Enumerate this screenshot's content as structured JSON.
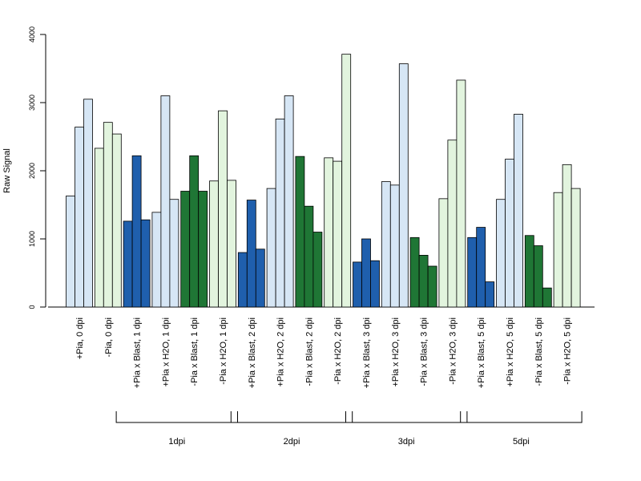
{
  "colors": {
    "plus_light": "#d6e6f5",
    "plus_dark": "#1f5fad",
    "minus_light": "#e2f4de",
    "minus_dark": "#1f7635",
    "stroke": "#000000"
  },
  "chart_data": {
    "type": "bar",
    "ylabel": "Raw Signal",
    "ylim": [
      0,
      4000
    ],
    "yticks": [
      "0",
      "1000",
      "2000",
      "3000",
      "4000"
    ],
    "grid": false,
    "legend": "none",
    "categories": [
      {
        "label": "+Pia, 0 dpi",
        "values": [
          1630,
          2640,
          3050
        ],
        "color": "plus_light"
      },
      {
        "label": "-Pia, 0 dpi",
        "values": [
          2330,
          2710,
          2540
        ],
        "color": "minus_light"
      },
      {
        "label": "+Pia x Blast, 1 dpi",
        "values": [
          1260,
          2220,
          1280
        ],
        "color": "plus_dark"
      },
      {
        "label": "+Pia x H2O, 1 dpi",
        "values": [
          1390,
          3100,
          1580
        ],
        "color": "plus_light"
      },
      {
        "label": "-Pia x Blast, 1 dpi",
        "values": [
          1700,
          2220,
          1700
        ],
        "color": "minus_dark"
      },
      {
        "label": "-Pia x H2O, 1 dpi",
        "values": [
          1850,
          2880,
          1860
        ],
        "color": "minus_light"
      },
      {
        "label": "+Pia x Blast, 2 dpi",
        "values": [
          800,
          1570,
          850
        ],
        "color": "plus_dark"
      },
      {
        "label": "+Pia x H2O, 2 dpi",
        "values": [
          1740,
          2760,
          3100
        ],
        "color": "plus_light"
      },
      {
        "label": "-Pia x Blast, 2 dpi",
        "values": [
          2210,
          1480,
          1100
        ],
        "color": "minus_dark"
      },
      {
        "label": "-Pia x H2O, 2 dpi",
        "values": [
          2190,
          2140,
          3710
        ],
        "color": "minus_light"
      },
      {
        "label": "+Pia x Blast, 3 dpi",
        "values": [
          660,
          1000,
          680
        ],
        "color": "plus_dark"
      },
      {
        "label": "+Pia x H2O, 3 dpi",
        "values": [
          1840,
          1790,
          3570
        ],
        "color": "plus_light"
      },
      {
        "label": "-Pia x Blast, 3 dpi",
        "values": [
          1020,
          760,
          600
        ],
        "color": "minus_dark"
      },
      {
        "label": "-Pia x H2O, 3 dpi",
        "values": [
          1590,
          2450,
          3330
        ],
        "color": "minus_light"
      },
      {
        "label": "+Pia x Blast, 5 dpi",
        "values": [
          1020,
          1170,
          370
        ],
        "color": "plus_dark"
      },
      {
        "label": "+Pia x H2O, 5 dpi",
        "values": [
          1580,
          2170,
          2830
        ],
        "color": "plus_light"
      },
      {
        "label": "-Pia x Blast, 5 dpi",
        "values": [
          1050,
          900,
          280
        ],
        "color": "minus_dark"
      },
      {
        "label": "-Pia x H2O, 5 dpi",
        "values": [
          1680,
          2090,
          1740
        ],
        "color": "minus_light"
      }
    ],
    "groups": [
      {
        "label": "1dpi",
        "first": 2,
        "last": 5
      },
      {
        "label": "2dpi",
        "first": 6,
        "last": 9
      },
      {
        "label": "3dpi",
        "first": 10,
        "last": 13
      },
      {
        "label": "5dpi",
        "first": 14,
        "last": 17
      }
    ]
  }
}
